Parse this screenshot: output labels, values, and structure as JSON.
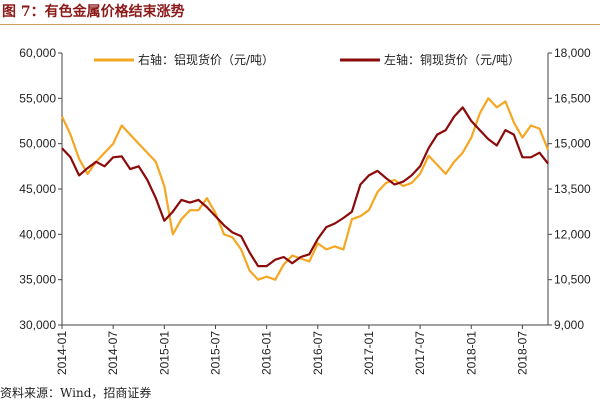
{
  "header": {
    "title": "图 7：有色金属价格结束涨势"
  },
  "footer": {
    "source": "资料来源：Wind，招商证券"
  },
  "colors": {
    "left_series": "#8b0a0a",
    "right_series": "#f5a623",
    "axis": "#444444"
  },
  "chart_data": {
    "type": "line",
    "title": "图 7：有色金属价格结束涨势",
    "grid": false,
    "legend": "top",
    "left_axis": {
      "ylim": [
        30000,
        60000
      ],
      "ticks": [
        "30,000",
        "35,000",
        "40,000",
        "45,000",
        "50,000",
        "55,000",
        "60,000"
      ]
    },
    "right_axis": {
      "ylim": [
        9000,
        18000
      ],
      "ticks": [
        "9,000",
        "10,500",
        "12,000",
        "13,500",
        "15,000",
        "16,500",
        "18,000"
      ]
    },
    "x_ticks": [
      "2014-01",
      "2014-07",
      "2015-01",
      "2015-07",
      "2016-01",
      "2016-07",
      "2017-01",
      "2017-07",
      "2018-01",
      "2018-07"
    ],
    "x_range": [
      "2014-01",
      "2018-10"
    ],
    "series": [
      {
        "name": "右轴：铝现货价（元/吨）",
        "axis": "right",
        "color": "#f5a623",
        "x": [
          "2014-01",
          "2014-02",
          "2014-03",
          "2014-04",
          "2014-05",
          "2014-06",
          "2014-07",
          "2014-08",
          "2014-09",
          "2014-10",
          "2014-11",
          "2014-12",
          "2015-01",
          "2015-02",
          "2015-03",
          "2015-04",
          "2015-05",
          "2015-06",
          "2015-07",
          "2015-08",
          "2015-09",
          "2015-10",
          "2015-11",
          "2015-12",
          "2016-01",
          "2016-02",
          "2016-03",
          "2016-04",
          "2016-05",
          "2016-06",
          "2016-07",
          "2016-08",
          "2016-09",
          "2016-10",
          "2016-11",
          "2016-12",
          "2017-01",
          "2017-02",
          "2017-03",
          "2017-04",
          "2017-05",
          "2017-06",
          "2017-07",
          "2017-08",
          "2017-09",
          "2017-10",
          "2017-11",
          "2017-12",
          "2018-01",
          "2018-02",
          "2018-03",
          "2018-04",
          "2018-05",
          "2018-06",
          "2018-07",
          "2018-08",
          "2018-09",
          "2018-10"
        ],
        "values": [
          15900,
          15300,
          14500,
          14000,
          14400,
          14700,
          15000,
          15600,
          15300,
          15000,
          14700,
          14400,
          13600,
          12000,
          12500,
          12800,
          12800,
          13200,
          12700,
          12000,
          11900,
          11500,
          10800,
          10500,
          10600,
          10500,
          11000,
          11300,
          11200,
          11100,
          11700,
          11500,
          11600,
          11500,
          12500,
          12600,
          12800,
          13400,
          13700,
          13800,
          13600,
          13700,
          14000,
          14600,
          14300,
          14000,
          14400,
          14700,
          15200,
          16000,
          16500,
          16200,
          16400,
          15700,
          15200,
          15600,
          15500,
          14800
        ],
        "unit": "元/吨"
      },
      {
        "name": "左轴：铜现货价（元/吨）",
        "axis": "left",
        "color": "#8b0a0a",
        "x": [
          "2014-01",
          "2014-02",
          "2014-03",
          "2014-04",
          "2014-05",
          "2014-06",
          "2014-07",
          "2014-08",
          "2014-09",
          "2014-10",
          "2014-11",
          "2014-12",
          "2015-01",
          "2015-02",
          "2015-03",
          "2015-04",
          "2015-05",
          "2015-06",
          "2015-07",
          "2015-08",
          "2015-09",
          "2015-10",
          "2015-11",
          "2015-12",
          "2016-01",
          "2016-02",
          "2016-03",
          "2016-04",
          "2016-05",
          "2016-06",
          "2016-07",
          "2016-08",
          "2016-09",
          "2016-10",
          "2016-11",
          "2016-12",
          "2017-01",
          "2017-02",
          "2017-03",
          "2017-04",
          "2017-05",
          "2017-06",
          "2017-07",
          "2017-08",
          "2017-09",
          "2017-10",
          "2017-11",
          "2017-12",
          "2018-01",
          "2018-02",
          "2018-03",
          "2018-04",
          "2018-05",
          "2018-06",
          "2018-07",
          "2018-08",
          "2018-09",
          "2018-10"
        ],
        "values": [
          49500,
          48500,
          46500,
          47300,
          48000,
          47500,
          48500,
          48600,
          47200,
          47500,
          46000,
          44000,
          41500,
          42500,
          43800,
          43500,
          43800,
          43000,
          42000,
          41000,
          40200,
          39800,
          38000,
          36500,
          36500,
          37200,
          37500,
          36800,
          37500,
          37800,
          39500,
          40800,
          41200,
          41800,
          42500,
          45500,
          46500,
          47000,
          46200,
          45500,
          45800,
          46500,
          47500,
          49500,
          51000,
          51500,
          53000,
          54000,
          52500,
          51500,
          50500,
          49800,
          51500,
          51000,
          48500,
          48500,
          49000,
          47800
        ],
        "unit": "元/吨"
      }
    ]
  }
}
